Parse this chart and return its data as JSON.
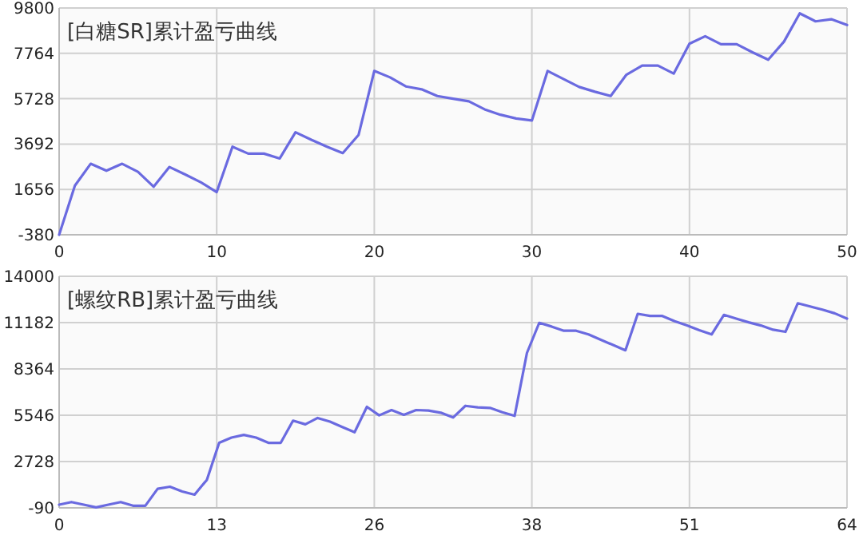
{
  "chart_data": [
    {
      "type": "line",
      "title": "[白糖SR]累计盈亏曲线",
      "x": [
        0,
        1,
        2,
        3,
        4,
        5,
        6,
        7,
        8,
        9,
        10,
        11,
        12,
        13,
        14,
        15,
        16,
        17,
        18,
        19,
        20,
        21,
        22,
        23,
        24,
        25,
        26,
        27,
        28,
        29,
        30,
        31,
        32,
        33,
        34,
        35,
        36,
        37,
        38,
        39,
        40,
        41,
        42,
        43,
        44,
        45,
        46,
        47,
        48,
        49,
        50
      ],
      "series": [
        {
          "color": "#6a6ae0",
          "values": [
            -380,
            1825,
            2807,
            2495,
            2807,
            2447,
            1777,
            2663,
            2327,
            1970,
            1537,
            3573,
            3262,
            3262,
            3046,
            4220,
            3885,
            3573,
            3286,
            4100,
            6974,
            6686,
            6280,
            6150,
            5848,
            5728,
            5609,
            5250,
            5010,
            4842,
            4747,
            6974,
            6615,
            6256,
            6040,
            5848,
            6806,
            7213,
            7213,
            6854,
            8195,
            8531,
            8171,
            8171,
            7812,
            7477,
            8291,
            9560,
            9201,
            9297,
            9034
          ]
        }
      ],
      "xlim": [
        0,
        50
      ],
      "xticks": [
        0,
        10,
        20,
        30,
        40,
        50
      ],
      "ylim": [
        -380,
        9800
      ],
      "yticks": [
        -380,
        1656,
        3692,
        5728,
        7764,
        9800
      ],
      "grid": true
    },
    {
      "type": "line",
      "title": "[螺纹RB]累计盈亏曲线",
      "x": [
        0,
        1,
        2,
        3,
        4,
        5,
        6,
        7,
        8,
        9,
        10,
        11,
        12,
        13,
        14,
        15,
        16,
        17,
        18,
        19,
        20,
        21,
        22,
        23,
        24,
        25,
        26,
        27,
        28,
        29,
        30,
        31,
        32,
        33,
        34,
        35,
        36,
        37,
        38,
        39,
        40,
        41,
        42,
        43,
        44,
        45,
        46,
        47,
        48,
        49,
        50,
        51,
        52,
        53,
        54,
        55,
        56,
        57,
        58,
        59,
        60,
        61,
        62,
        63,
        64
      ],
      "series": [
        {
          "color": "#6a6ae0",
          "values": [
            103,
            264,
            103,
            -60,
            103,
            264,
            39,
            39,
            1068,
            1196,
            907,
            714,
            1615,
            3867,
            4188,
            4349,
            4188,
            3867,
            3867,
            5218,
            4992,
            5379,
            5153,
            4831,
            4510,
            6054,
            5539,
            5861,
            5571,
            5861,
            5830,
            5700,
            5410,
            6118,
            6022,
            5990,
            5732,
            5507,
            9335,
            11169,
            10944,
            10686,
            10686,
            10461,
            10140,
            9818,
            9496,
            11716,
            11587,
            11587,
            11266,
            11008,
            10719,
            10461,
            11652,
            11426,
            11201,
            11008,
            10750,
            10622,
            12359,
            12166,
            11973,
            11748,
            11426
          ]
        }
      ],
      "xlim": [
        0,
        64
      ],
      "xticks": [
        0,
        {
          "value": 12.8,
          "label": "13"
        },
        {
          "value": 25.6,
          "label": "26"
        },
        {
          "value": 38.4,
          "label": "38"
        },
        {
          "value": 51.2,
          "label": "51"
        },
        64
      ],
      "ylim": [
        -90,
        14000
      ],
      "yticks": [
        -90,
        2728,
        5546,
        8364,
        11182,
        14000
      ],
      "grid": true
    }
  ]
}
